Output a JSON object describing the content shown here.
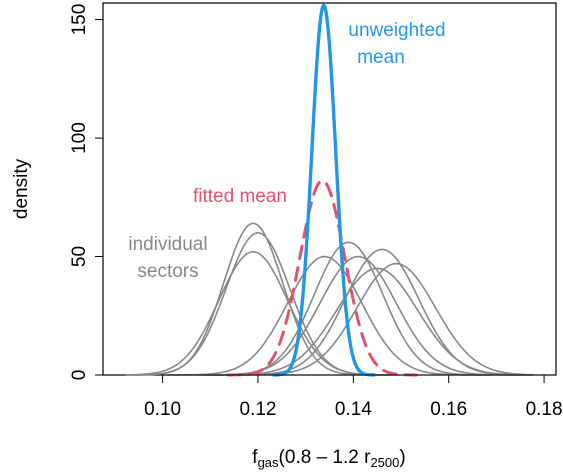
{
  "chart_data": {
    "type": "line",
    "xlabel": {
      "base": "f",
      "sub": "gas",
      "expr": "(0.8 – 1.2 r",
      "sub2": "2500",
      "close": ")"
    },
    "ylabel": "density",
    "xlim": [
      0.0875,
      0.1825
    ],
    "ylim": [
      0,
      157
    ],
    "xticks": [
      0.1,
      0.12,
      0.14,
      0.16,
      0.18
    ],
    "xtick_labels": [
      "0.10",
      "0.12",
      "0.14",
      "0.16",
      "0.18"
    ],
    "yticks": [
      0,
      50,
      100,
      150
    ],
    "ytick_labels": [
      "0",
      "50",
      "100",
      "150"
    ],
    "grid": false,
    "colors": {
      "sectors": "#888888",
      "fitted": "#DF536B",
      "unweighted": "#2297E6"
    },
    "annotations": {
      "sectors_line1": "individual",
      "sectors_line2": "sectors",
      "fitted": "fitted mean",
      "unweighted_line1": "unweighted",
      "unweighted_line2": "mean"
    },
    "series": [
      {
        "role": "sector",
        "type": "gaussian",
        "mean": 0.119,
        "sd": 0.0062,
        "peak": 64
      },
      {
        "role": "sector",
        "type": "gaussian",
        "mean": 0.12,
        "sd": 0.0067,
        "peak": 60
      },
      {
        "role": "sector",
        "type": "gaussian",
        "mean": 0.119,
        "sd": 0.0072,
        "peak": 52
      },
      {
        "role": "sector",
        "type": "gaussian",
        "mean": 0.134,
        "sd": 0.0078,
        "peak": 50
      },
      {
        "role": "sector",
        "type": "gaussian",
        "mean": 0.139,
        "sd": 0.0072,
        "peak": 56
      },
      {
        "role": "sector",
        "type": "gaussian",
        "mean": 0.141,
        "sd": 0.008,
        "peak": 50
      },
      {
        "role": "sector",
        "type": "gaussian",
        "mean": 0.146,
        "sd": 0.0077,
        "peak": 53
      },
      {
        "role": "sector",
        "type": "gaussian",
        "mean": 0.149,
        "sd": 0.0082,
        "peak": 47
      },
      {
        "role": "sector",
        "type": "gaussian",
        "mean": 0.145,
        "sd": 0.0085,
        "peak": 45
      },
      {
        "role": "fitted",
        "type": "gaussian",
        "mean": 0.1335,
        "sd": 0.0047,
        "peak": 82
      },
      {
        "role": "unweighted",
        "type": "gaussian",
        "mean": 0.1338,
        "sd": 0.0025,
        "peak": 156
      }
    ]
  }
}
